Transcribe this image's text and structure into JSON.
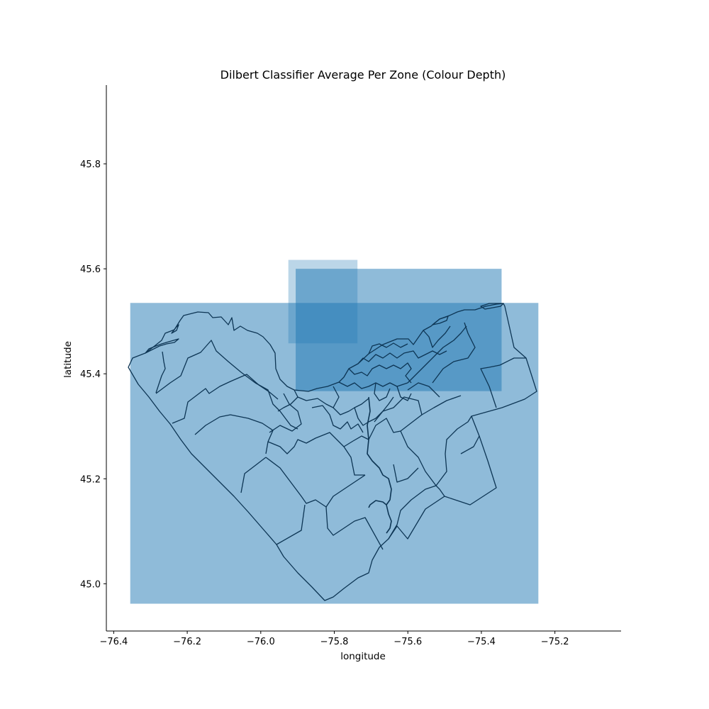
{
  "title": "Dilbert Classifier Average Per Zone (Colour Depth)",
  "xlabel": "longitude",
  "ylabel": "latitude",
  "colors": {
    "fill": "#1f77b4",
    "boundary": "#0d3554",
    "axis": "#000000"
  },
  "chart_data": {
    "type": "heatmap",
    "title": "Dilbert Classifier Average Per Zone (Colour Depth)",
    "xlabel": "longitude",
    "ylabel": "latitude",
    "xlim": [
      -76.42,
      -75.02
    ],
    "ylim": [
      44.91,
      45.95
    ],
    "xticks": [
      -76.4,
      -76.2,
      -76.0,
      -75.8,
      -75.6,
      -75.4,
      -75.2
    ],
    "xtick_labels": [
      "−76.4",
      "−76.2",
      "−76.0",
      "−75.8",
      "−75.6",
      "−75.4",
      "−75.2"
    ],
    "yticks": [
      45.0,
      45.2,
      45.4,
      45.6,
      45.8
    ],
    "ytick_labels": [
      "45.0",
      "45.2",
      "45.4",
      "45.6",
      "45.8"
    ],
    "grid": false,
    "zones": [
      {
        "lon": [
          -76.355,
          -75.245
        ],
        "lat": [
          44.962,
          45.535
        ],
        "alpha": 0.5
      },
      {
        "lon": [
          -75.905,
          -75.345
        ],
        "lat": [
          45.367,
          45.6
        ],
        "alpha": 0.5
      },
      {
        "lon": [
          -75.925,
          -75.737
        ],
        "lat": [
          45.458,
          45.617
        ],
        "alpha": 0.3
      }
    ]
  }
}
